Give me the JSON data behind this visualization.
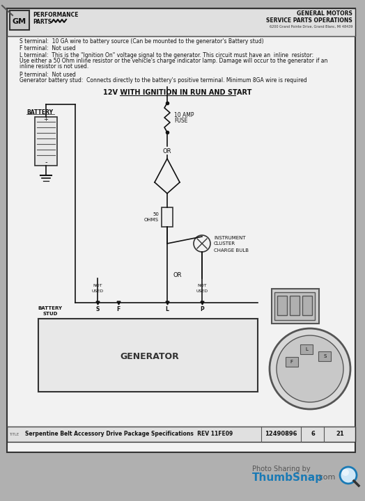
{
  "bg_color": "#b0b0b0",
  "doc_bg": "#f2f2f2",
  "header_bg": "#e0e0e0",
  "title_text_1": "GENERAL MOTORS",
  "title_text_2": "SERVICE PARTS OPERATIONS",
  "title_sub": "6200 Grand Pointe Drive, Grand Blanc, MI 48439",
  "gm_label": "GM",
  "perf_line1": "PERFORMANCE",
  "perf_line2": "PARTS",
  "header_lines": [
    "S terminal:  10 GA wire to battery source (Can be mounted to the generator's Battery stud)",
    "F terminal:  Not used",
    "L terminal:  This is the \"Ignition On\" voltage signal to the generator. This circuit must have an  inline  resistor:",
    "Use either a 50 Ohm inline resistor or the vehicle's charge indicator lamp. Damage will occur to the generator if an",
    "inline resistor is not used.",
    "",
    "P terminal:  Not used",
    "Generator battery stud:  Connects directly to the battery's positive terminal. Minimum 8GA wire is required"
  ],
  "diagram_title": "12V WITH IGNITION IN RUN AND START",
  "footer_title": "Serpentine Belt Accessory Drive Package Specifications  REV 11FE09",
  "footer_num": "12490896",
  "footer_page": "6",
  "footer_sheet": "21",
  "watermark_line1": "Photo Sharing by",
  "watermark_line2": "ThumbSnap",
  "watermark_line3": ".com",
  "thumbsnap_color": "#1a7ab5",
  "text_dark": "#111111",
  "text_mid": "#333333",
  "text_light": "#555555"
}
